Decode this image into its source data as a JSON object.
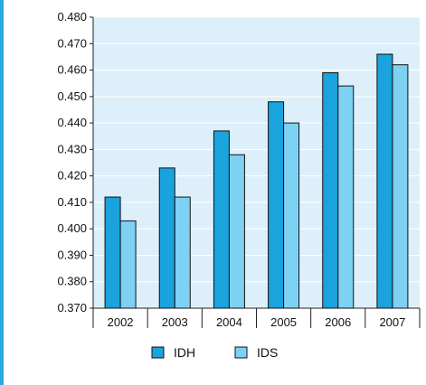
{
  "chart_data": {
    "type": "bar",
    "title": "",
    "xlabel": "",
    "ylabel": "",
    "categories": [
      "2002",
      "2003",
      "2004",
      "2005",
      "2006",
      "2007"
    ],
    "series": [
      {
        "name": "IDH",
        "values": [
          0.412,
          0.423,
          0.437,
          0.448,
          0.459,
          0.466
        ],
        "color": "#1aa3dc"
      },
      {
        "name": "IDS",
        "values": [
          0.403,
          0.412,
          0.428,
          0.44,
          0.454,
          0.462
        ],
        "color": "#7dd1f2"
      }
    ],
    "ylim": [
      0.37,
      0.48
    ],
    "yticks": [
      "0.370",
      "0.380",
      "0.390",
      "0.400",
      "0.410",
      "0.420",
      "0.430",
      "0.440",
      "0.450",
      "0.460",
      "0.470",
      "0.480"
    ],
    "grid": true,
    "legend": "bottom-center"
  },
  "colors": {
    "plot_background": "#ddeffa",
    "gridline": "#ffffff",
    "axis": "#222222",
    "accent_rule": "#2aaae2"
  }
}
